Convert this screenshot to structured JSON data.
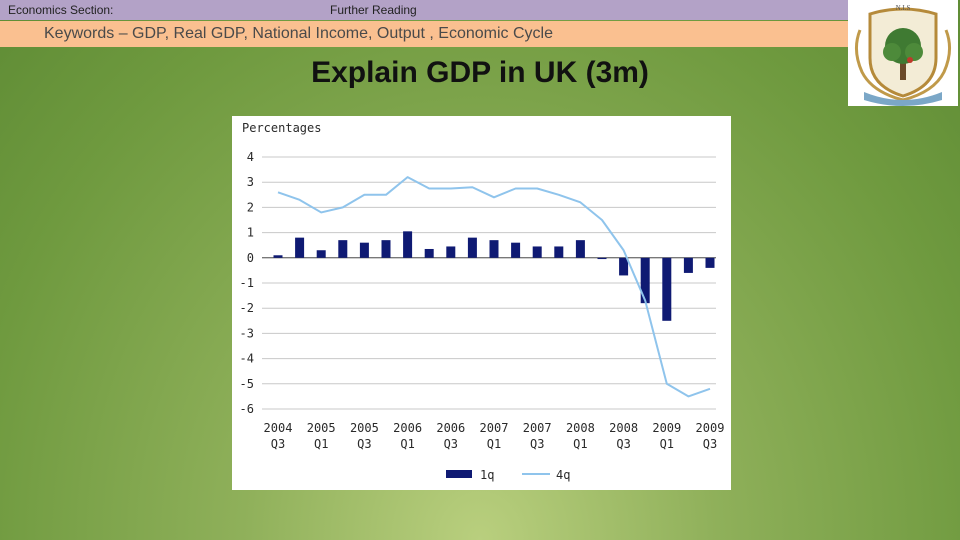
{
  "header": {
    "section_label": "Economics Section:",
    "reading_label": "Further Reading",
    "keywords": "Keywords – GDP, Real GDP, National Income, Output , Economic Cycle"
  },
  "logo": {
    "text": "N.I.S"
  },
  "slide": {
    "title": "Explain GDP in UK (3m)"
  },
  "colors": {
    "bar": "#0f1a73",
    "line": "#8fc4ec",
    "grid": "#c8c8c8",
    "topbar": "#b3a2c7",
    "keywords_bar": "#fac090"
  },
  "chart_data": {
    "type": "bar",
    "ylabel": "Percentages",
    "ylim": [
      -6,
      4
    ],
    "yticks": [
      4,
      3,
      2,
      1,
      0,
      -1,
      -2,
      -3,
      -4,
      -5,
      -6
    ],
    "x_tick_labels": [
      {
        "year": "2004",
        "q": "Q3"
      },
      {
        "year": "2005",
        "q": "Q1"
      },
      {
        "year": "2005",
        "q": "Q3"
      },
      {
        "year": "2006",
        "q": "Q1"
      },
      {
        "year": "2006",
        "q": "Q3"
      },
      {
        "year": "2007",
        "q": "Q1"
      },
      {
        "year": "2007",
        "q": "Q3"
      },
      {
        "year": "2008",
        "q": "Q1"
      },
      {
        "year": "2008",
        "q": "Q3"
      },
      {
        "year": "2009",
        "q": "Q1"
      },
      {
        "year": "2009",
        "q": "Q3"
      }
    ],
    "categories": [
      "2004 Q3",
      "2004 Q4",
      "2005 Q1",
      "2005 Q2",
      "2005 Q3",
      "2005 Q4",
      "2006 Q1",
      "2006 Q2",
      "2006 Q3",
      "2006 Q4",
      "2007 Q1",
      "2007 Q2",
      "2007 Q3",
      "2007 Q4",
      "2008 Q1",
      "2008 Q2",
      "2008 Q3",
      "2008 Q4",
      "2009 Q1",
      "2009 Q2",
      "2009 Q3"
    ],
    "series": [
      {
        "name": "1q",
        "type": "bar",
        "values": [
          0.1,
          0.8,
          0.3,
          0.7,
          0.6,
          0.7,
          1.05,
          0.35,
          0.45,
          0.8,
          0.7,
          0.6,
          0.45,
          0.45,
          0.7,
          -0.05,
          -0.7,
          -1.8,
          -2.5,
          -0.6,
          -0.4
        ]
      },
      {
        "name": "4q",
        "type": "line",
        "values": [
          2.6,
          2.3,
          1.8,
          2.0,
          2.5,
          2.5,
          3.2,
          2.75,
          2.75,
          2.8,
          2.4,
          2.75,
          2.75,
          2.5,
          2.2,
          1.5,
          0.3,
          -1.7,
          -5.0,
          -5.5,
          -5.2
        ]
      }
    ],
    "grid": true,
    "legend_position": "bottom"
  }
}
